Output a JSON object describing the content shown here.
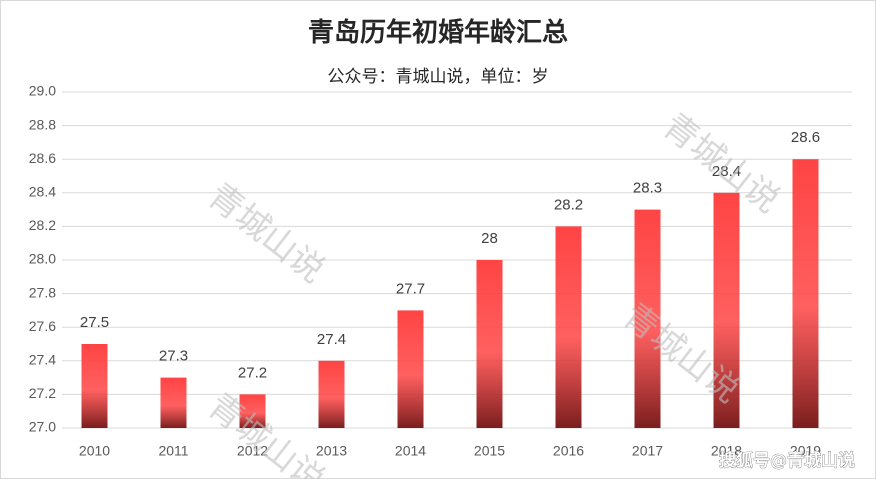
{
  "chart_data": {
    "type": "bar",
    "title": "青岛历年初婚年龄汇总",
    "subtitle": "公众号：青城山说，单位：岁",
    "categories": [
      "2010",
      "2011",
      "2012",
      "2013",
      "2014",
      "2015",
      "2016",
      "2017",
      "2018",
      "2019"
    ],
    "values": [
      27.5,
      27.3,
      27.2,
      27.4,
      27.7,
      28,
      28.2,
      28.3,
      28.4,
      28.6
    ],
    "color": "#ff4444",
    "ylim": [
      27,
      29
    ],
    "yticks": [
      {
        "value": 27,
        "label": "27.0"
      },
      27.2,
      27.4,
      27.6,
      27.8,
      {
        "value": 28,
        "label": "28.0"
      },
      28.2,
      28.4,
      28.6,
      28.8,
      {
        "value": 29,
        "label": "29.0"
      }
    ],
    "grid": true,
    "watermarks": [
      "青城山说",
      "青城山说",
      "青城山说",
      "青城山说"
    ],
    "source": "搜狐号@青城山说"
  }
}
